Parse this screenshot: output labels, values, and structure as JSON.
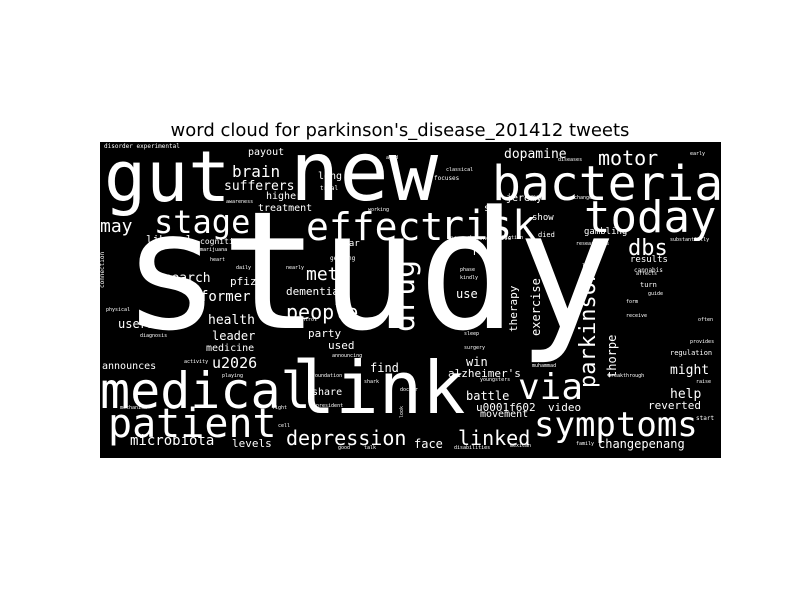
{
  "title": "word cloud for parkinson's_disease_201412 tweets",
  "colors": {
    "background": "#ffffff",
    "cloud_background": "#000000",
    "word_color": "#ffffff"
  },
  "words": {
    "study": "study",
    "new": "new",
    "gut": "gut",
    "bacteria": "bacteria",
    "today": "today",
    "link": "link",
    "medical": "medical",
    "patient": "patient",
    "symptoms": "symptoms",
    "effect": "effect",
    "risk": "risk",
    "stage": "stage",
    "drug": "drug",
    "parkinson": "parkinson",
    "via": "via",
    "depression": "depression",
    "linked": "linked",
    "motor": "motor",
    "dbs": "dbs",
    "people": "people",
    "meth": "meth",
    "brain": "brain",
    "sufferers": "sufferers",
    "may": "may",
    "dopamine": "dopamine",
    "former": "former",
    "microbiota": "microbiota",
    "changepenang": "changepenang",
    "u2026": "u2026",
    "help": "help",
    "might": "might",
    "exercise": "exercise",
    "therapy": "therapy",
    "alzheimers": "alzheimer's",
    "use": "use",
    "win": "win",
    "battle": "battle",
    "movement": "movement",
    "video": "video",
    "u0001f602": "u0001f602",
    "reverted": "reverted",
    "research": "research",
    "pfizer": "pfizer",
    "health": "health",
    "users": "users",
    "leader": "leader",
    "medicine": "medicine",
    "announces": "announces",
    "levels": "levels",
    "face": "face",
    "find": "find",
    "share": "share",
    "used": "used",
    "party": "party",
    "dementia": "dementia",
    "payout": "payout",
    "higher": "higher",
    "treatment": "treatment",
    "liberal": "liberal",
    "cognitive": "cognitive",
    "long": "long",
    "jeremy": "jeremy",
    "sex": "sex",
    "thorpe": "thorpe",
    "gambling": "gambling",
    "results": "results",
    "rt": "rt",
    "year": "year",
    "show": "show",
    "regulation": "regulation",
    "cannabis": "cannabis",
    "turn": "turn",
    "died": "died",
    "trial": "trial",
    "disorder_experimental": "disorder experimental",
    "connection": "connection",
    "early": "early",
    "research_sm": "researchers",
    "marijuana": "marijuana",
    "heart": "heart",
    "daily": "daily",
    "getting": "getting",
    "physical": "physical",
    "diagnosis": "diagnosis",
    "mechanism": "mechanism",
    "president": "president",
    "foundation": "foundation",
    "playing": "playing",
    "surgery": "surgery",
    "sleep": "sleep",
    "doctor": "doctor",
    "disabilities": "disabilities",
    "mexican": "mexican",
    "good": "good",
    "talk": "talk",
    "family": "family",
    "start": "start",
    "raise": "raise",
    "often": "often",
    "guide": "guide",
    "affects": "affects",
    "provides": "provides",
    "focuses": "focuses",
    "classical": "classical",
    "neurodegen": "neurodegenerative",
    "addiction": "addiction",
    "announcing": "announcing",
    "control": "control",
    "aged": "aged",
    "diseases": "diseases",
    "change": "change",
    "breakthrough": "breakthrough",
    "receive": "receive",
    "form": "form",
    "look": "look",
    "cell": "cell",
    "fight": "fight",
    "living": "living",
    "shark": "shark",
    "muhammad": "muhammad",
    "youngsters": "youngsters",
    "treated": "treated",
    "substantially": "substantially",
    "last": "last",
    "linked_sm": "linked",
    "memory": "memory",
    "activity": "activity",
    "nearly": "nearly",
    "moving": "moving",
    "phase": "phase",
    "kindly": "kindly",
    "cause": "cause",
    "drug_sm": "hydroxy",
    "bioxcel": "bioxcel",
    "awareness": "awareness",
    "working": "working",
    "aid": "aid",
    "mobile": "mobile",
    "lower": "lower",
    "non": "non",
    "lead": "lead",
    "india": "india",
    "seven": "seven",
    "cure": "cure",
    "care": "care",
    "ipd": "ipd",
    "app": "app",
    "tech": "tech"
  }
}
